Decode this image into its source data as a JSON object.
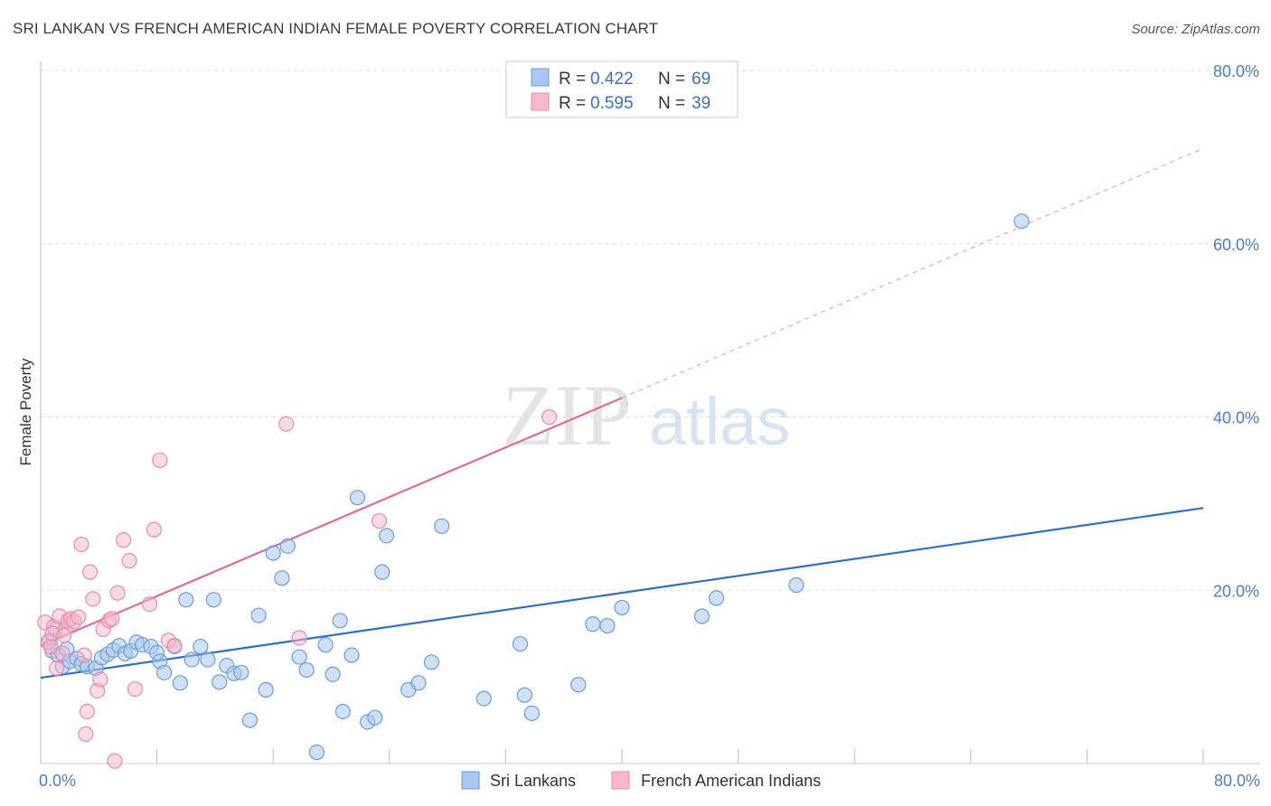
{
  "title": "SRI LANKAN VS FRENCH AMERICAN INDIAN FEMALE POVERTY CORRELATION CHART",
  "source": "Source: ZipAtlas.com",
  "watermark": {
    "zip": "ZIP",
    "atlas": "atlas"
  },
  "colors": {
    "blue_fill": "#a8c8f0",
    "blue_stroke": "#6d9ad8",
    "blue_line": "#2a6fd1",
    "pink_fill": "#f7b8cc",
    "pink_stroke": "#e98aa8",
    "pink_line": "#e06a93",
    "grid": "#dddddd",
    "axis_text": "#4a7cc9"
  },
  "legend": {
    "r_label": "R =",
    "n_label": "N =",
    "items": [
      {
        "r": "0.422",
        "n": "69",
        "color": "blue"
      },
      {
        "r": "0.595",
        "n": "39",
        "color": "pink"
      }
    ]
  },
  "bottom_legend": [
    "Sri Lankans",
    "French American Indians"
  ],
  "chart_data": {
    "type": "scatter",
    "title": "SRI LANKAN VS FRENCH AMERICAN INDIAN FEMALE POVERTY CORRELATION CHART",
    "xlabel": "",
    "ylabel": "Female Poverty",
    "xlim": [
      0,
      80
    ],
    "ylim": [
      0,
      80
    ],
    "x_tick_labels": [
      "0.0%",
      "80.0%"
    ],
    "y_ticks": [
      20,
      40,
      60,
      80
    ],
    "y_tick_labels": [
      "20.0%",
      "40.0%",
      "60.0%",
      "80.0%"
    ],
    "grid": true,
    "series": [
      {
        "name": "Sri Lankans",
        "color": "blue",
        "trend": {
          "x0": 0,
          "y0": 9.9,
          "x1": 80,
          "y1": 29.5
        },
        "points": [
          [
            0.6,
            14.2
          ],
          [
            0.8,
            13.0
          ],
          [
            1.0,
            15.5
          ],
          [
            1.2,
            12.5
          ],
          [
            1.5,
            11.2
          ],
          [
            1.8,
            13.2
          ],
          [
            2.0,
            11.8
          ],
          [
            2.5,
            12.1
          ],
          [
            2.8,
            11.5
          ],
          [
            3.2,
            11.2
          ],
          [
            3.8,
            11.0
          ],
          [
            4.2,
            12.2
          ],
          [
            4.6,
            12.6
          ],
          [
            5.0,
            13.1
          ],
          [
            5.4,
            13.6
          ],
          [
            5.8,
            12.7
          ],
          [
            6.2,
            13.0
          ],
          [
            6.6,
            14.0
          ],
          [
            7.0,
            13.7
          ],
          [
            7.6,
            13.5
          ],
          [
            8.0,
            12.8
          ],
          [
            8.2,
            11.8
          ],
          [
            8.5,
            10.5
          ],
          [
            9.2,
            13.5
          ],
          [
            9.6,
            9.3
          ],
          [
            10.0,
            18.9
          ],
          [
            10.4,
            12.0
          ],
          [
            11.0,
            13.5
          ],
          [
            11.5,
            12.0
          ],
          [
            11.9,
            18.9
          ],
          [
            12.3,
            9.4
          ],
          [
            12.8,
            11.3
          ],
          [
            13.3,
            10.4
          ],
          [
            13.8,
            10.5
          ],
          [
            14.4,
            5.0
          ],
          [
            15.0,
            17.1
          ],
          [
            15.5,
            8.5
          ],
          [
            16.0,
            24.3
          ],
          [
            16.6,
            21.4
          ],
          [
            17.0,
            25.1
          ],
          [
            17.8,
            12.3
          ],
          [
            18.3,
            10.8
          ],
          [
            19.0,
            1.3
          ],
          [
            19.6,
            13.7
          ],
          [
            20.1,
            10.3
          ],
          [
            20.6,
            16.5
          ],
          [
            20.8,
            6.0
          ],
          [
            21.4,
            12.5
          ],
          [
            21.8,
            30.7
          ],
          [
            22.5,
            4.8
          ],
          [
            23.0,
            5.3
          ],
          [
            23.5,
            22.1
          ],
          [
            23.8,
            26.3
          ],
          [
            25.3,
            8.5
          ],
          [
            26.0,
            9.3
          ],
          [
            26.9,
            11.7
          ],
          [
            27.6,
            27.4
          ],
          [
            30.5,
            7.5
          ],
          [
            33.0,
            13.8
          ],
          [
            33.3,
            7.9
          ],
          [
            33.8,
            5.8
          ],
          [
            37.0,
            9.1
          ],
          [
            38.0,
            16.1
          ],
          [
            39.0,
            15.9
          ],
          [
            40.0,
            18.0
          ],
          [
            45.5,
            17.0
          ],
          [
            46.5,
            19.1
          ],
          [
            52.0,
            20.6
          ],
          [
            67.5,
            62.6
          ]
        ]
      },
      {
        "name": "French American Indians",
        "color": "pink",
        "trend": {
          "x0": 0,
          "y0": 13.6,
          "x1": 40,
          "y1": 42.2,
          "dash_x1": 80,
          "dash_y1": 71.0
        },
        "points": [
          [
            0.3,
            16.3
          ],
          [
            0.5,
            14.0
          ],
          [
            0.7,
            13.5
          ],
          [
            0.9,
            15.8
          ],
          [
            1.1,
            11.0
          ],
          [
            1.3,
            17.0
          ],
          [
            1.5,
            12.7
          ],
          [
            1.7,
            15.6
          ],
          [
            1.9,
            16.5
          ],
          [
            2.1,
            16.7
          ],
          [
            2.3,
            16.4
          ],
          [
            2.6,
            16.9
          ],
          [
            2.8,
            25.3
          ],
          [
            3.0,
            12.5
          ],
          [
            3.2,
            6.0
          ],
          [
            3.4,
            22.1
          ],
          [
            3.6,
            19.0
          ],
          [
            3.9,
            8.4
          ],
          [
            4.1,
            9.7
          ],
          [
            4.3,
            15.5
          ],
          [
            4.7,
            16.5
          ],
          [
            5.1,
            0.3
          ],
          [
            5.3,
            19.7
          ],
          [
            5.7,
            25.8
          ],
          [
            6.1,
            23.4
          ],
          [
            6.5,
            8.6
          ],
          [
            7.5,
            18.4
          ],
          [
            7.8,
            27.0
          ],
          [
            8.2,
            35.0
          ],
          [
            8.8,
            14.2
          ],
          [
            9.2,
            13.6
          ],
          [
            16.9,
            39.2
          ],
          [
            17.8,
            14.5
          ],
          [
            23.3,
            28.0
          ],
          [
            35.0,
            40.0
          ],
          [
            3.1,
            3.4
          ],
          [
            0.8,
            15.0
          ],
          [
            1.6,
            14.8
          ],
          [
            4.9,
            16.7
          ]
        ]
      }
    ]
  }
}
